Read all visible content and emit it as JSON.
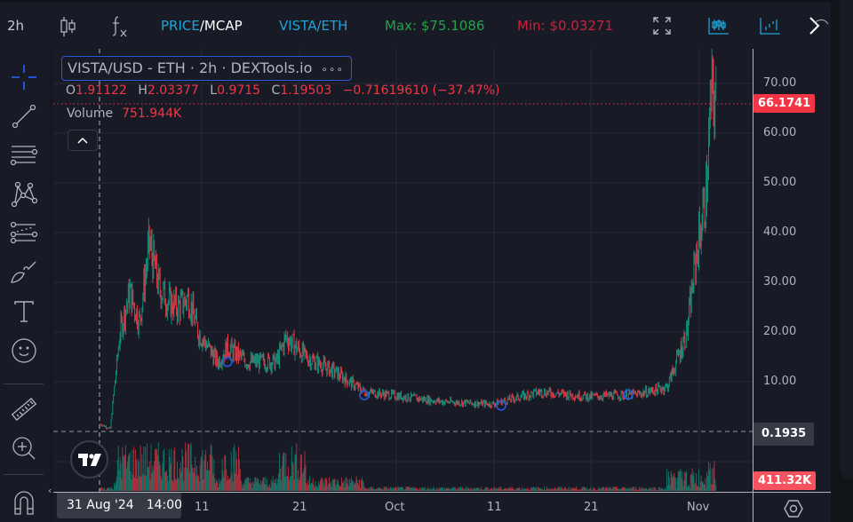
{
  "toolbar": {
    "timeframe": "2h",
    "price_label": "PRICE",
    "slash": "/",
    "mcap_label": "MCAP",
    "pair_label": "VISTA/ETH",
    "max_label": "Max: $75.1086",
    "min_label": "Min: $0.03271",
    "icons": [
      "candle-type-icon",
      "indicators-icon",
      "fullscreen-icon",
      "candlestick-chart-icon",
      "bar-chart-icon",
      "collapse-panel-icon"
    ]
  },
  "colors": {
    "up": "#089981",
    "down": "#f23645",
    "accent_blue": "#1fa3d6",
    "max_green": "#26a04a",
    "min_red": "#c9213a",
    "background": "#181b26"
  },
  "legend": {
    "title": "VISTA/USD - ETH · 2h · DEXTools.io",
    "more": "∘∘∘",
    "ohlc": {
      "o_label": "O",
      "o": "1.91122",
      "h_label": "H",
      "h": "2.03377",
      "l_label": "L",
      "l": "0.9715",
      "c_label": "C",
      "c": "1.19503",
      "change": "−0.71619610 (−37.47%)"
    },
    "volume_label": "Volume",
    "volume_value": "751.944K"
  },
  "price_axis": {
    "labels": [
      "70.00",
      "60.00",
      "50.00",
      "40.00",
      "30.00",
      "20.00",
      "10.00"
    ],
    "current_price_tag": "66.1741",
    "crosshair_tag": "0.1935",
    "volume_tag": "411.32K"
  },
  "time_axis": {
    "labels": [
      "11",
      "21",
      "Oct",
      "11",
      "21",
      "Nov"
    ],
    "crosshair_date": "31 Aug '24",
    "crosshair_time": "14:00"
  },
  "left_tools": [
    {
      "name": "crosshair-tool",
      "label": "Crosshair"
    },
    {
      "name": "trendline-tool",
      "label": "Trend Line"
    },
    {
      "name": "fib-tool",
      "label": "Fib Retracement"
    },
    {
      "name": "pattern-tool",
      "label": "XABCD Pattern"
    },
    {
      "name": "prediction-tool",
      "label": "Long Position"
    },
    {
      "name": "brush-tool",
      "label": "Brush"
    },
    {
      "name": "text-tool",
      "label": "Text"
    },
    {
      "name": "emoji-tool",
      "label": "Icons"
    },
    {
      "name": "measure-tool",
      "label": "Measure"
    },
    {
      "name": "zoom-tool",
      "label": "Zoom In"
    },
    {
      "name": "magnet-tool",
      "label": "Magnet Mode"
    }
  ],
  "chart_data": {
    "type": "candlestick",
    "title": "VISTA/USD - ETH · 2h · DEXTools.io",
    "x_ticks": [
      "31 Aug '24",
      "11",
      "21",
      "Oct",
      "11",
      "21",
      "Nov"
    ],
    "y_ticks": [
      10,
      20,
      30,
      40,
      50,
      60,
      70
    ],
    "ylim": [
      0,
      74
    ],
    "price_path": [
      {
        "date": "Aug 31",
        "price": 1.5
      },
      {
        "date": "Sep 1",
        "price": 0.5
      },
      {
        "date": "Sep 2",
        "price": 20
      },
      {
        "date": "Sep 3",
        "price": 28
      },
      {
        "date": "Sep 4",
        "price": 22
      },
      {
        "date": "Sep 5",
        "price": 38
      },
      {
        "date": "Sep 6",
        "price": 29
      },
      {
        "date": "Sep 7",
        "price": 26
      },
      {
        "date": "Sep 8",
        "price": 25
      },
      {
        "date": "Sep 9",
        "price": 27
      },
      {
        "date": "Sep 10",
        "price": 20
      },
      {
        "date": "Sep 11",
        "price": 17
      },
      {
        "date": "Sep 12",
        "price": 14
      },
      {
        "date": "Sep 13",
        "price": 17
      },
      {
        "date": "Sep 15",
        "price": 14
      },
      {
        "date": "Sep 18",
        "price": 14
      },
      {
        "date": "Sep 19",
        "price": 19
      },
      {
        "date": "Sep 21",
        "price": 15
      },
      {
        "date": "Sep 24",
        "price": 12
      },
      {
        "date": "Sep 27",
        "price": 8
      },
      {
        "date": "Oct 1",
        "price": 7
      },
      {
        "date": "Oct 5",
        "price": 6
      },
      {
        "date": "Oct 10",
        "price": 5.5
      },
      {
        "date": "Oct 12",
        "price": 6.5
      },
      {
        "date": "Oct 15",
        "price": 8
      },
      {
        "date": "Oct 20",
        "price": 7
      },
      {
        "date": "Oct 25",
        "price": 7.5
      },
      {
        "date": "Oct 28",
        "price": 9
      },
      {
        "date": "Oct 30",
        "price": 20
      },
      {
        "date": "Oct 31",
        "price": 36
      },
      {
        "date": "Nov 1",
        "price": 48
      },
      {
        "date": "Nov 1 pm",
        "price": 68
      },
      {
        "date": "Nov 2",
        "price": 66.17
      }
    ],
    "markers": [
      {
        "date": "Sep 13",
        "price": 14
      },
      {
        "date": "Sep 27",
        "price": 7.3
      },
      {
        "date": "Oct 11",
        "price": 5.2
      },
      {
        "date": "Oct 24",
        "price": 7.4
      }
    ],
    "max_price": 75.1086,
    "min_price": 0.03271,
    "last_close": 66.1741,
    "last_volume": "411.32K"
  }
}
